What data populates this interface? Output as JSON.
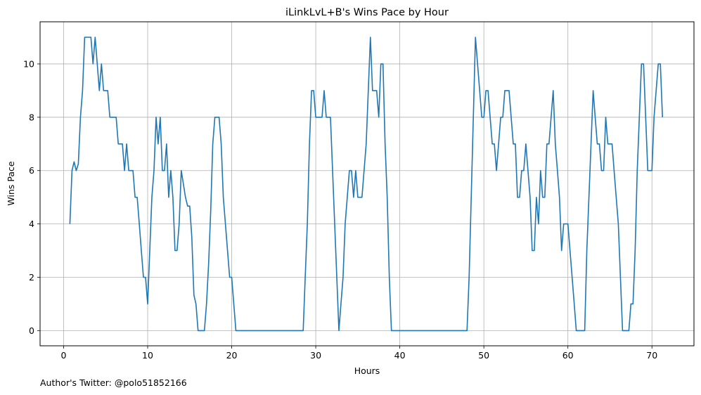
{
  "footer": {
    "author_note": "Author's Twitter: @polo51852166"
  },
  "colors": {
    "line": "#1f77b4",
    "grid": "#b0b0b0",
    "axis": "#000000"
  },
  "chart_data": {
    "type": "line",
    "title": "iLinkLvL+B's Wins Pace by Hour",
    "xlabel": "Hours",
    "ylabel": "Wins Pace",
    "xlim": [
      -2.8,
      75.0
    ],
    "ylim": [
      -0.57,
      11.58
    ],
    "grid": true,
    "x_ticks": [
      0,
      10,
      20,
      30,
      40,
      50,
      60,
      70
    ],
    "x_tick_labels": [
      "0",
      "10",
      "20",
      "30",
      "40",
      "50",
      "60",
      "70"
    ],
    "y_ticks": [
      0,
      2,
      4,
      6,
      8,
      10
    ],
    "y_tick_labels": [
      "0",
      "2",
      "4",
      "6",
      "8",
      "10"
    ],
    "series": [
      {
        "name": "Wins Pace",
        "x": [
          0.75,
          1.0,
          1.25,
          1.5,
          1.75,
          2.0,
          2.25,
          2.5,
          2.75,
          3.0,
          3.25,
          3.5,
          3.75,
          4.0,
          4.25,
          4.5,
          4.75,
          5.0,
          5.25,
          5.5,
          5.75,
          6.0,
          6.25,
          6.5,
          6.75,
          7.0,
          7.25,
          7.5,
          7.75,
          8.0,
          8.25,
          8.5,
          8.75,
          9.0,
          9.25,
          9.5,
          9.75,
          10.0,
          10.25,
          10.5,
          10.75,
          11.0,
          11.25,
          11.5,
          11.75,
          12.0,
          12.25,
          12.5,
          12.75,
          13.0,
          13.25,
          13.5,
          13.75,
          14.0,
          14.25,
          14.5,
          14.75,
          15.0,
          15.25,
          15.5,
          15.75,
          16.0,
          16.25,
          16.5,
          16.75,
          17.0,
          17.25,
          17.5,
          17.75,
          18.0,
          18.25,
          18.5,
          18.75,
          19.0,
          19.25,
          19.5,
          19.75,
          20.0,
          20.25,
          20.5,
          20.75,
          21.0,
          28.5,
          28.75,
          29.0,
          29.25,
          29.5,
          29.75,
          30.0,
          30.25,
          30.5,
          30.75,
          31.0,
          31.25,
          31.5,
          31.75,
          32.0,
          32.25,
          32.5,
          32.75,
          33.0,
          33.25,
          33.5,
          33.75,
          34.0,
          34.25,
          34.5,
          34.75,
          35.0,
          35.25,
          35.5,
          35.75,
          36.0,
          36.25,
          36.5,
          36.75,
          37.0,
          37.25,
          37.5,
          37.75,
          38.0,
          38.25,
          38.5,
          38.75,
          39.0,
          39.25,
          39.5,
          48.0,
          48.25,
          48.5,
          48.75,
          49.0,
          49.25,
          49.5,
          49.75,
          50.0,
          50.25,
          50.5,
          50.75,
          51.0,
          51.25,
          51.5,
          51.75,
          52.0,
          52.25,
          52.5,
          52.75,
          53.0,
          53.25,
          53.5,
          53.75,
          54.0,
          54.25,
          54.5,
          54.75,
          55.0,
          55.25,
          55.5,
          55.75,
          56.0,
          56.25,
          56.5,
          56.75,
          57.0,
          57.25,
          57.5,
          57.75,
          58.0,
          58.25,
          58.5,
          58.75,
          59.0,
          59.25,
          59.5,
          59.75,
          60.0,
          60.25,
          60.5,
          60.75,
          61.0,
          61.25,
          61.5,
          61.75,
          62.0,
          62.25,
          62.5,
          62.75,
          63.0,
          63.25,
          63.5,
          63.75,
          64.0,
          64.25,
          64.5,
          64.75,
          65.0,
          65.25,
          65.5,
          65.75,
          66.0,
          66.25,
          66.5,
          66.75,
          67.0,
          67.25,
          67.5,
          67.75,
          68.0,
          68.25,
          68.5,
          68.75,
          69.0,
          69.25,
          69.5,
          69.75,
          70.0,
          70.25,
          70.5,
          70.75,
          71.0,
          71.25
        ],
        "y": [
          4,
          6,
          6.33,
          6,
          6.25,
          8,
          9,
          11,
          11,
          11,
          11,
          10,
          11,
          10,
          9,
          10,
          9,
          9,
          9,
          8,
          8,
          8,
          8,
          7,
          7,
          7,
          6,
          7,
          6,
          6,
          6,
          5,
          5,
          4,
          3,
          2,
          2,
          1,
          3,
          5,
          6,
          8,
          7,
          8,
          6,
          6,
          7,
          5,
          6,
          5,
          3,
          3,
          4,
          6,
          5.5,
          5,
          4.67,
          4.67,
          3.5,
          1.33,
          1,
          0,
          0,
          0,
          0,
          1,
          2.5,
          4.5,
          7,
          8,
          8,
          8,
          7,
          5,
          4,
          3,
          2,
          2,
          1,
          0,
          0,
          0,
          0,
          2,
          4,
          7,
          9,
          9,
          8,
          8,
          8,
          8,
          9,
          8,
          8,
          8,
          6,
          4,
          2,
          0,
          1,
          2,
          4,
          5,
          6,
          6,
          5,
          6,
          5,
          5,
          5,
          6,
          7,
          9,
          11,
          9,
          9,
          9,
          8,
          10,
          10,
          7,
          5,
          2,
          0,
          0,
          0,
          0,
          2,
          5,
          8,
          11,
          10,
          9,
          8,
          8,
          9,
          9,
          8,
          7,
          7,
          6,
          7,
          8,
          8,
          9,
          9,
          9,
          8,
          7,
          7,
          5,
          5,
          6,
          6,
          7,
          6,
          5,
          3,
          3,
          5,
          4,
          6,
          5,
          5,
          7,
          7,
          8,
          9,
          7,
          6,
          5,
          3,
          4,
          4,
          4,
          3,
          2,
          1,
          0,
          0,
          0,
          0,
          0,
          3,
          5,
          7,
          9,
          8,
          7,
          7,
          6,
          6,
          8,
          7,
          7,
          7,
          6,
          5,
          4,
          2,
          0,
          0,
          0,
          0,
          1,
          1,
          3,
          6,
          8,
          10,
          10,
          8,
          6,
          6,
          6,
          8,
          9,
          10,
          10,
          8
        ]
      }
    ]
  }
}
